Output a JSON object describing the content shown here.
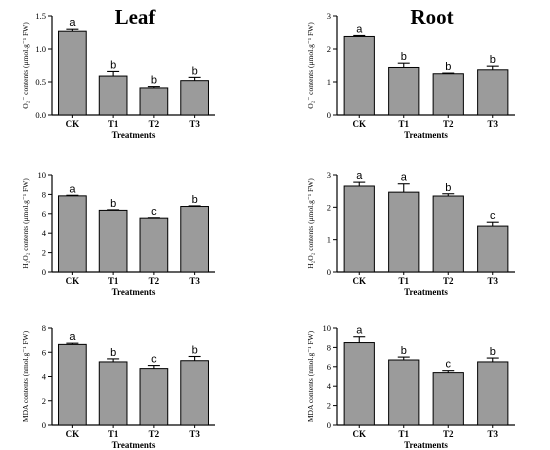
{
  "titles": [
    "Leaf",
    "Root"
  ],
  "colors": {
    "bar_fill": "#9b9b9b",
    "bar_stroke": "#000000"
  },
  "chart_data": [
    {
      "type": "bar",
      "panel": "leaf-o2",
      "categories": [
        "CK",
        "T1",
        "T2",
        "T3"
      ],
      "values": [
        1.27,
        0.59,
        0.41,
        0.52
      ],
      "errors": [
        0.03,
        0.07,
        0.02,
        0.05
      ],
      "labels": [
        "a",
        "b",
        "b",
        "b"
      ],
      "ylim": [
        0,
        1.5
      ],
      "yticks": [
        0,
        0.5,
        1.0,
        1.5
      ],
      "ytick_labels": [
        "0.0",
        "0.5",
        "1.0",
        "1.5"
      ],
      "ylabel": "O₂⁻ contents (μmol.g⁻¹ FW)",
      "xlabel": "Treatments"
    },
    {
      "type": "bar",
      "panel": "root-o2",
      "categories": [
        "CK",
        "T1",
        "T2",
        "T3"
      ],
      "values": [
        2.38,
        1.44,
        1.25,
        1.37
      ],
      "errors": [
        0.03,
        0.13,
        0.02,
        0.11
      ],
      "labels": [
        "a",
        "b",
        "b",
        "b"
      ],
      "ylim": [
        0,
        3
      ],
      "yticks": [
        0,
        1,
        2,
        3
      ],
      "ytick_labels": [
        "0",
        "1",
        "2",
        "3"
      ],
      "ylabel": "O₂⁻ contents (μmol.g⁻¹ FW)",
      "xlabel": "Treatments"
    },
    {
      "type": "bar",
      "panel": "leaf-h2o2",
      "categories": [
        "CK",
        "T1",
        "T2",
        "T3"
      ],
      "values": [
        7.85,
        6.35,
        5.55,
        6.75
      ],
      "errors": [
        0.06,
        0.05,
        0.04,
        0.06
      ],
      "labels": [
        "a",
        "b",
        "c",
        "b"
      ],
      "ylim": [
        0,
        10
      ],
      "yticks": [
        0,
        2,
        4,
        6,
        8,
        10
      ],
      "ytick_labels": [
        "0",
        "2",
        "4",
        "6",
        "8",
        "10"
      ],
      "ylabel": "H₂O₂ contents (μmol.g⁻¹ FW)",
      "xlabel": "Treatments"
    },
    {
      "type": "bar",
      "panel": "root-h2o2",
      "categories": [
        "CK",
        "T1",
        "T2",
        "T3"
      ],
      "values": [
        2.66,
        2.47,
        2.35,
        1.42
      ],
      "errors": [
        0.12,
        0.26,
        0.07,
        0.12
      ],
      "labels": [
        "a",
        "a",
        "b",
        "c"
      ],
      "ylim": [
        0,
        3
      ],
      "yticks": [
        0,
        1,
        2,
        3
      ],
      "ytick_labels": [
        "0",
        "1",
        "2",
        "3"
      ],
      "ylabel": "H₂O₂ contents (μmol.g⁻¹ FW)",
      "xlabel": "Treatments"
    },
    {
      "type": "bar",
      "panel": "leaf-mda",
      "categories": [
        "CK",
        "T1",
        "T2",
        "T3"
      ],
      "values": [
        6.65,
        5.2,
        4.65,
        5.3
      ],
      "errors": [
        0.1,
        0.25,
        0.25,
        0.35
      ],
      "labels": [
        "a",
        "b",
        "c",
        "b"
      ],
      "ylim": [
        0,
        8
      ],
      "yticks": [
        0,
        2,
        4,
        6,
        8
      ],
      "ytick_labels": [
        "0",
        "2",
        "4",
        "6",
        "8"
      ],
      "ylabel": "MDA contents (nmol.g⁻¹ FW)",
      "xlabel": "Treatments"
    },
    {
      "type": "bar",
      "panel": "root-mda",
      "categories": [
        "CK",
        "T1",
        "T2",
        "T3"
      ],
      "values": [
        8.5,
        6.7,
        5.4,
        6.5
      ],
      "errors": [
        0.6,
        0.3,
        0.2,
        0.4
      ],
      "labels": [
        "a",
        "b",
        "c",
        "b"
      ],
      "ylim": [
        0,
        10
      ],
      "yticks": [
        0,
        2,
        4,
        6,
        8,
        10
      ],
      "ytick_labels": [
        "0",
        "2",
        "4",
        "6",
        "8",
        "10"
      ],
      "ylabel": "MDA contents (nmol.g⁻¹ FW)",
      "xlabel": "Treatments"
    }
  ]
}
